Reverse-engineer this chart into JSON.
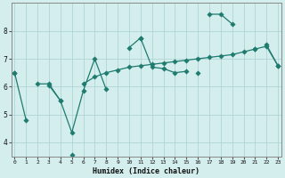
{
  "xlabel": "Humidex (Indice chaleur)",
  "bg_color": "#d4eeee",
  "grid_color": "#afd4d4",
  "line_color": "#1e7b6e",
  "x_values": [
    0,
    1,
    2,
    3,
    4,
    5,
    6,
    7,
    8,
    9,
    10,
    11,
    12,
    13,
    14,
    15,
    16,
    17,
    18,
    19,
    20,
    21,
    22,
    23
  ],
  "series1": [
    6.5,
    4.8,
    null,
    null,
    null,
    3.55,
    null,
    null,
    null,
    null,
    null,
    7.75,
    6.7,
    6.65,
    6.5,
    6.55,
    null,
    8.6,
    8.6,
    8.25,
    null,
    null,
    7.5,
    6.75
  ],
  "series2": [
    null,
    null,
    null,
    6.05,
    5.5,
    4.35,
    5.85,
    7.0,
    5.9,
    null,
    7.4,
    7.75,
    null,
    null,
    null,
    null,
    6.5,
    null,
    null,
    null,
    null,
    7.35,
    null,
    null
  ],
  "series3": [
    6.5,
    null,
    6.1,
    6.1,
    5.5,
    null,
    6.1,
    6.35,
    6.5,
    6.6,
    6.7,
    6.75,
    6.8,
    6.85,
    6.9,
    6.95,
    7.0,
    7.05,
    7.1,
    7.15,
    7.25,
    7.35,
    7.45,
    6.75
  ],
  "ylim": [
    3.5,
    9.0
  ],
  "yticks": [
    4,
    5,
    6,
    7,
    8
  ],
  "xlim": [
    -0.3,
    23.3
  ],
  "xticks": [
    0,
    1,
    2,
    3,
    4,
    5,
    6,
    7,
    8,
    9,
    10,
    11,
    12,
    13,
    14,
    15,
    16,
    17,
    18,
    19,
    20,
    21,
    22,
    23
  ]
}
